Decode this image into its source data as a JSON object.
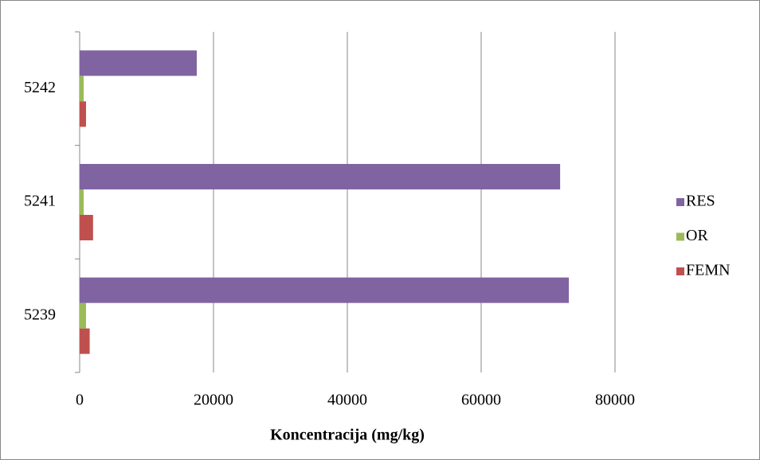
{
  "chart_data": {
    "type": "hbar",
    "categories": [
      "5239",
      "5241",
      "5242"
    ],
    "series": [
      {
        "name": "FEMN",
        "color": "#c0504d",
        "values": [
          1500,
          2000,
          950
        ]
      },
      {
        "name": "OR",
        "color": "#9bbb59",
        "values": [
          950,
          600,
          600
        ]
      },
      {
        "name": "RES",
        "color": "#8064a2",
        "values": [
          73100,
          71800,
          17500
        ]
      }
    ],
    "xlabel": "Koncentracija (mg/kg)",
    "xlim": [
      0,
      80000
    ],
    "xticks": [
      0,
      20000,
      40000,
      60000,
      80000
    ],
    "grid": true,
    "legend": "right"
  }
}
